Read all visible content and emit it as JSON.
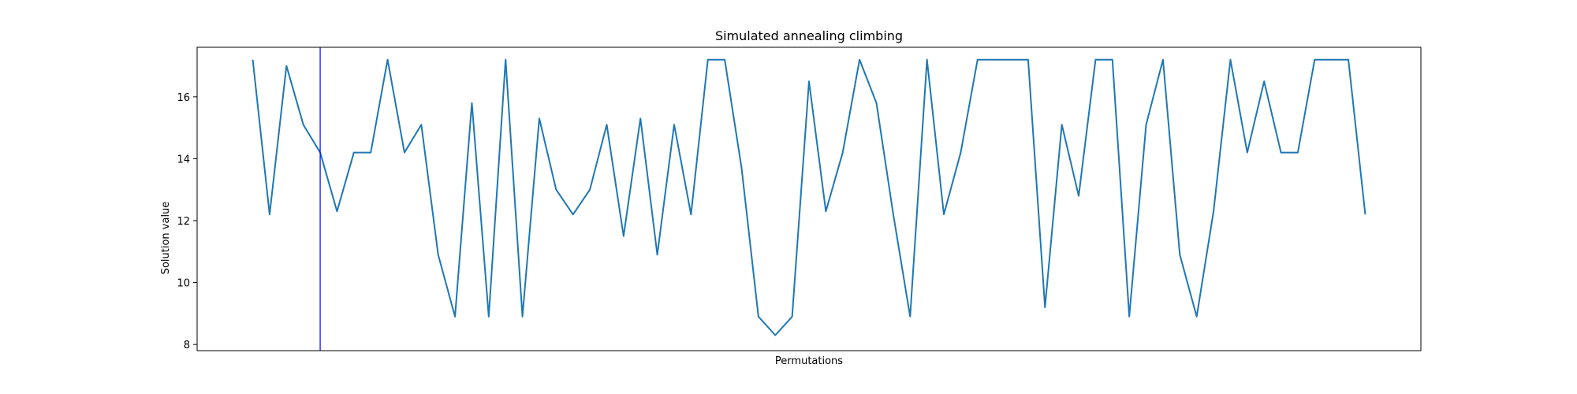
{
  "chart_data": {
    "type": "line",
    "title": "Simulated annealing climbing",
    "xlabel": "Permutations",
    "ylabel": "Solution value",
    "ylim": [
      7.8,
      17.6
    ],
    "xlim": [
      -3.3,
      69.3
    ],
    "yticks": [
      8,
      10,
      12,
      14,
      16
    ],
    "xticks_visible": false,
    "grid": false,
    "series": [
      {
        "color": "#1f77b4",
        "x": [
          0,
          1,
          2,
          3,
          4,
          5,
          6,
          7,
          8,
          9,
          10,
          11,
          12,
          13,
          14,
          15,
          16,
          17,
          18,
          19,
          20,
          21,
          22,
          23,
          24,
          25,
          26,
          27,
          28,
          29,
          30,
          31,
          32,
          33,
          34,
          35,
          36,
          37,
          38,
          39,
          40,
          41,
          42,
          43,
          44,
          45,
          46,
          47,
          48,
          49,
          50,
          51,
          52,
          53,
          54,
          55,
          56,
          57,
          58,
          59,
          60,
          61,
          62,
          63,
          64,
          65,
          66
        ],
        "values": [
          17.2,
          12.2,
          17.0,
          15.1,
          14.2,
          12.3,
          14.2,
          14.2,
          17.2,
          14.2,
          15.1,
          10.9,
          8.9,
          15.8,
          8.9,
          17.2,
          8.9,
          15.3,
          13.0,
          12.2,
          13.0,
          15.1,
          11.5,
          15.3,
          10.9,
          15.1,
          12.2,
          17.2,
          17.2,
          13.7,
          8.9,
          8.3,
          8.9,
          16.5,
          12.3,
          14.2,
          17.2,
          15.8,
          12.2,
          8.9,
          17.2,
          12.2,
          14.2,
          17.2,
          17.2,
          17.2,
          17.2,
          9.2,
          15.1,
          12.8,
          17.2,
          17.2,
          8.9,
          15.1,
          17.2,
          10.9,
          8.9,
          12.3,
          17.2,
          14.2,
          16.5,
          14.2,
          14.2,
          17.2,
          17.2,
          17.2,
          12.2
        ]
      }
    ],
    "vertical_marker": {
      "x": 4,
      "color": "#0000ff"
    }
  }
}
